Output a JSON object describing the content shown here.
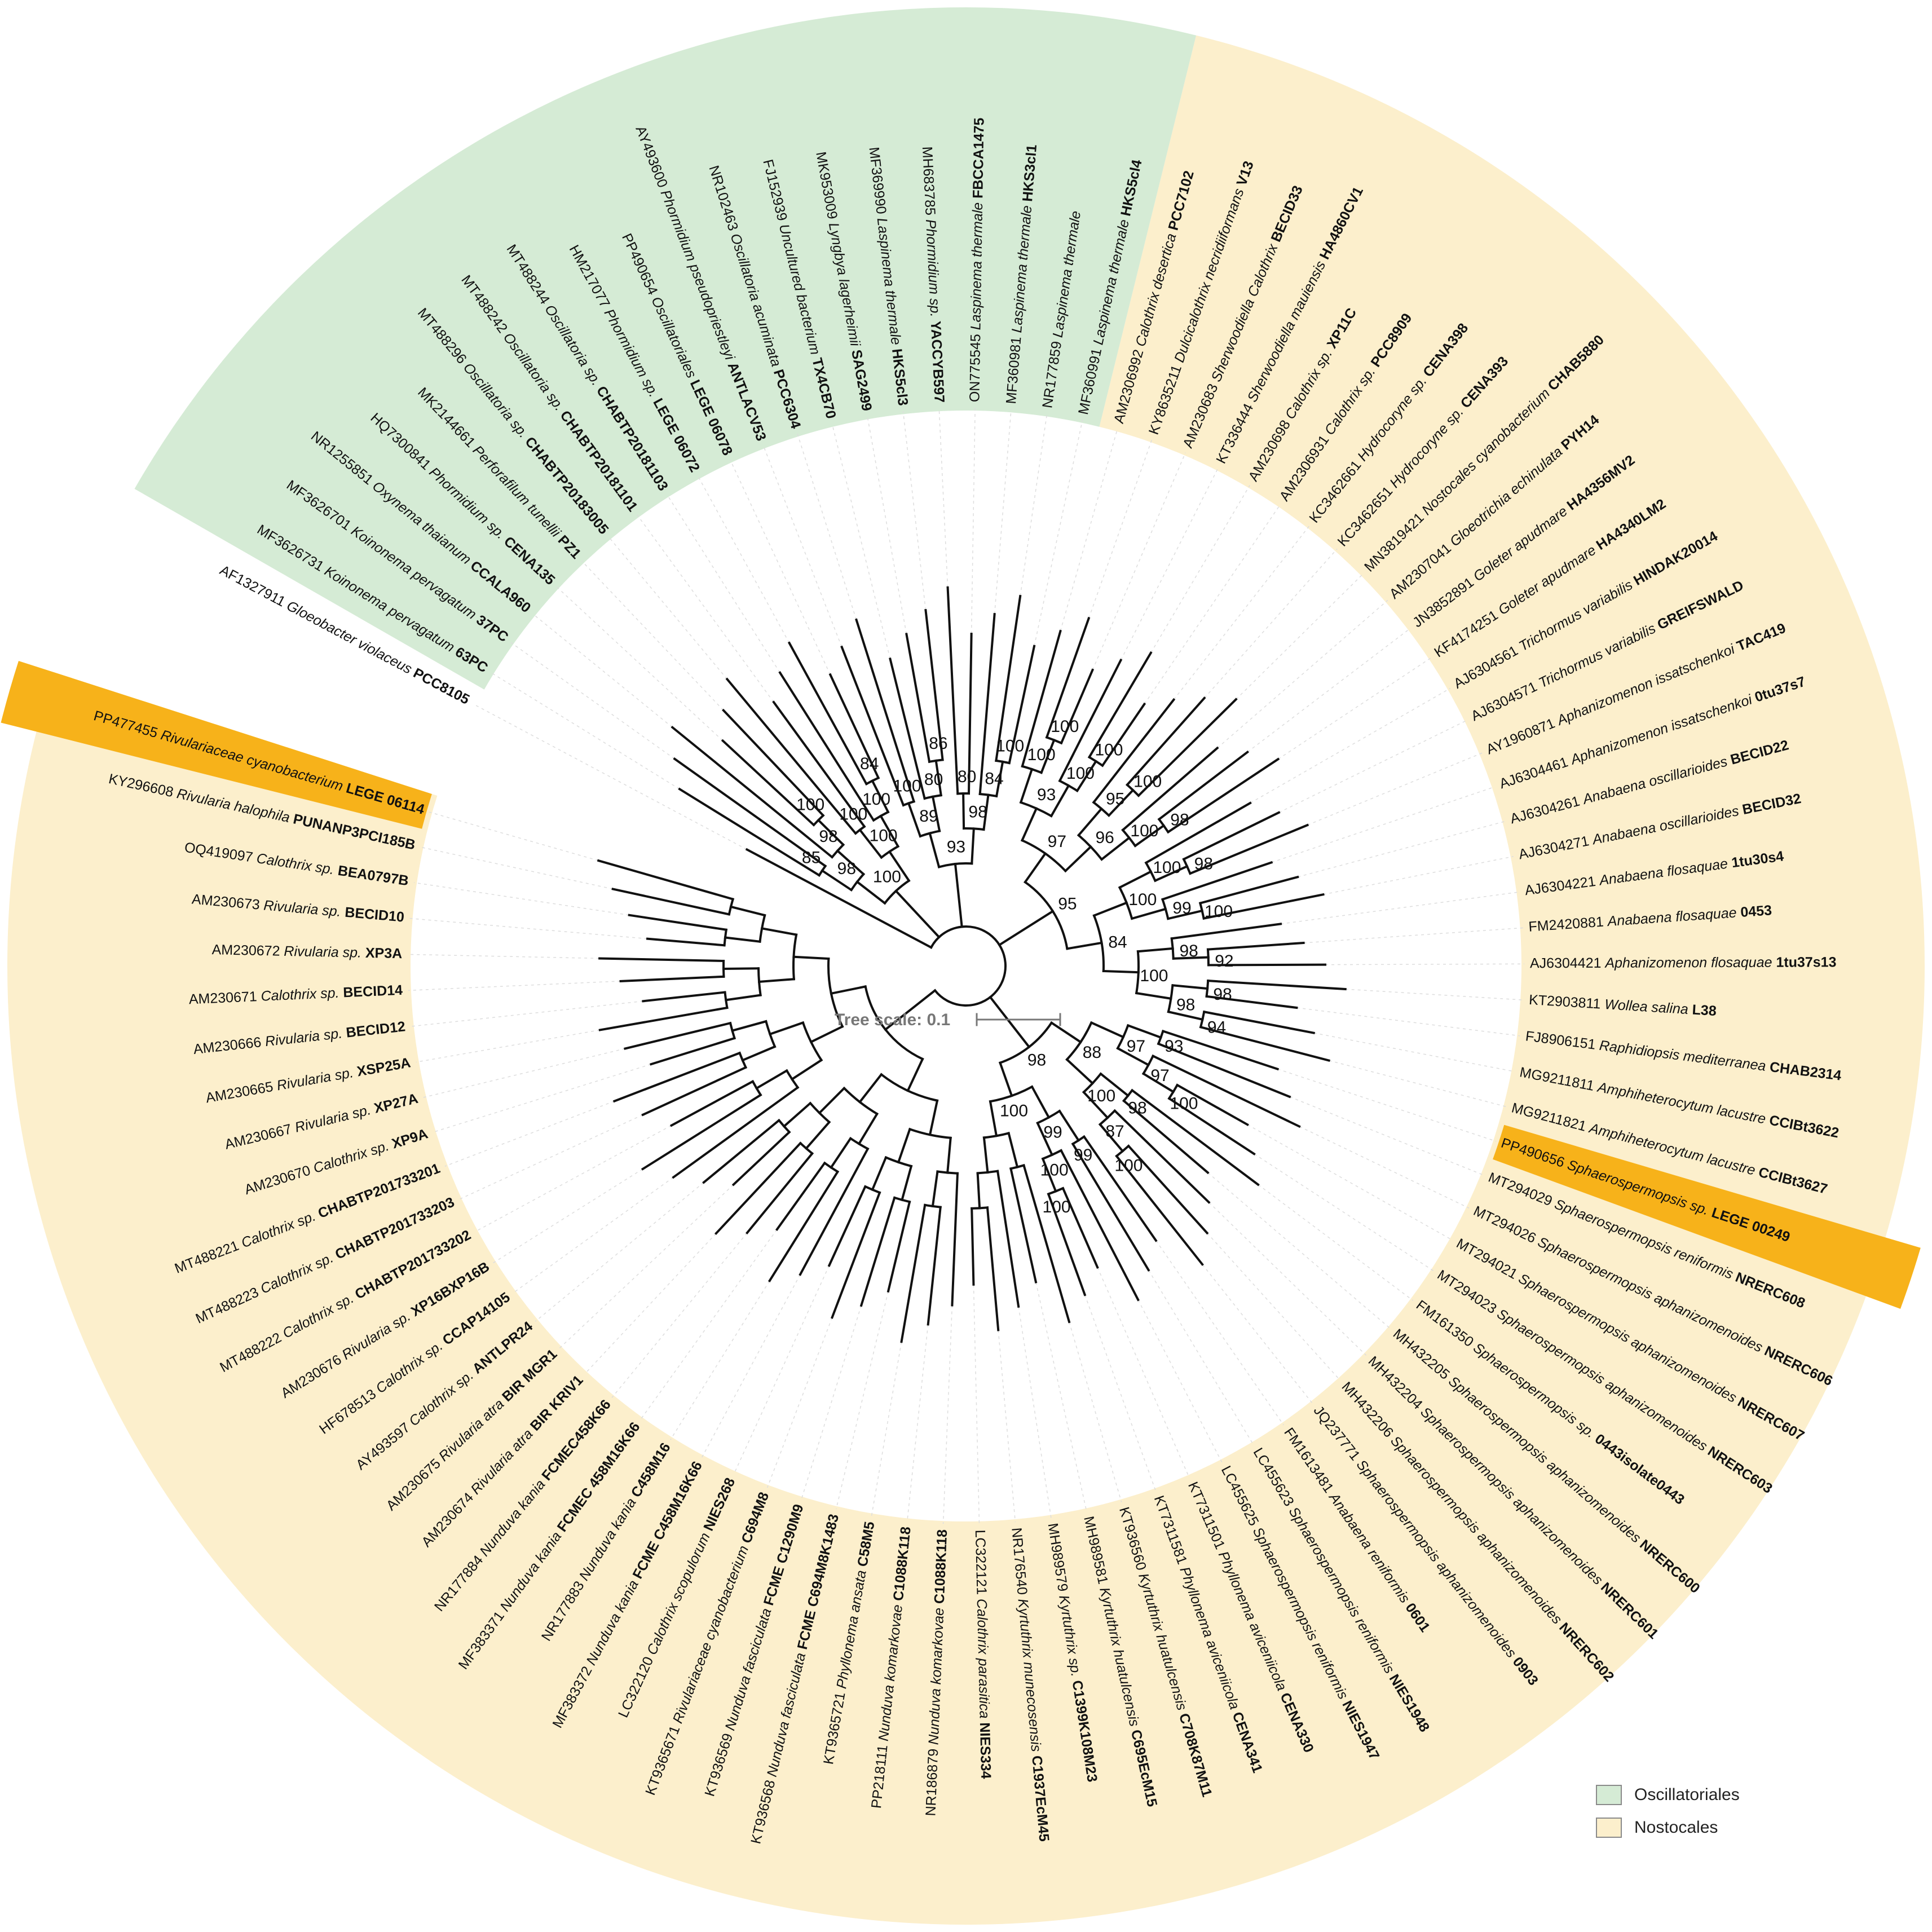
{
  "legend": [
    {
      "label": "Oscillatoriales",
      "color": "#d5ebd5"
    },
    {
      "label": "Nostocales",
      "color": "#fcefcc"
    }
  ],
  "highlight_color": "#f7b21a",
  "scale": {
    "label": "Tree scale: 0.1",
    "length": 0.1
  },
  "leaves": [
    {
      "acc": "AF1327911",
      "sp": "Gloeobacter violaceus",
      "st": "PCC8105",
      "clade": "outgroup"
    },
    {
      "acc": "MF3626731",
      "sp": "Koinonema pervagatum",
      "st": "63PC",
      "clade": "osc"
    },
    {
      "acc": "MF3626701",
      "sp": "Koinonema pervagatum",
      "st": "37PC",
      "clade": "osc"
    },
    {
      "acc": "NR1255851",
      "sp": "Oxynema thaianum",
      "st": "CCALA960",
      "clade": "osc"
    },
    {
      "acc": "HQ7300841",
      "sp": "Phormidium sp.",
      "st": "CENA135",
      "clade": "osc"
    },
    {
      "acc": "MK2144661",
      "sp": "Perforafilum tunellii",
      "st": "PZ1",
      "clade": "osc"
    },
    {
      "acc": "MT488296",
      "sp": "Oscillatoria sp.",
      "st": "CHABTP20183005",
      "clade": "osc"
    },
    {
      "acc": "MT488242",
      "sp": "Oscillatoria sp.",
      "st": "CHABTP20181101",
      "clade": "osc"
    },
    {
      "acc": "MT488244",
      "sp": "Oscillatoria sp.",
      "st": "CHABTP20181103",
      "clade": "osc"
    },
    {
      "acc": "HM217077",
      "sp": "Phormidium sp.",
      "st": "LEGE 06072",
      "clade": "osc"
    },
    {
      "acc": "PP490654",
      "sp": "Oscillatoriales",
      "st": "LEGE 06078",
      "clade": "osc"
    },
    {
      "acc": "AY493600",
      "sp": "Phormidium pseudopriestleyi",
      "st": "ANTLACV53",
      "clade": "osc"
    },
    {
      "acc": "NR102463",
      "sp": "Oscillatoria acuminata",
      "st": "PCC6304",
      "clade": "osc"
    },
    {
      "acc": "FJ152939",
      "sp": "Uncultured bacterium",
      "st": "TX4CB70",
      "clade": "osc"
    },
    {
      "acc": "MK953009",
      "sp": "Lyngbya lagerheimii",
      "st": "SAG2499",
      "clade": "osc"
    },
    {
      "acc": "MF369990",
      "sp": "Laspinema thermale",
      "st": "HKS5cl3",
      "clade": "osc"
    },
    {
      "acc": "MH683785",
      "sp": "Phormidium sp.",
      "st": "YACCYB597",
      "clade": "osc"
    },
    {
      "acc": "ON775545",
      "sp": "Laspinema thermale",
      "st": "FBCCA1475",
      "clade": "osc"
    },
    {
      "acc": "MF360981",
      "sp": "Laspinema thermale",
      "st": "HKS3cl1",
      "clade": "osc"
    },
    {
      "acc": "NR177859",
      "sp": "Laspinema thermale",
      "st": "",
      "clade": "osc"
    },
    {
      "acc": "MF360991",
      "sp": "Laspinema thermale",
      "st": "HKS5cl4",
      "clade": "osc"
    },
    {
      "acc": "AM2306992",
      "sp": "Calothrix desertica",
      "st": "PCC7102",
      "clade": "nos"
    },
    {
      "acc": "KY8635211",
      "sp": "Dulcicalothrix necridiiformans",
      "st": "V13",
      "clade": "nos"
    },
    {
      "acc": "AM230683",
      "sp": "Sherwoodiella Calothrix",
      "st": "BECID33",
      "clade": "nos"
    },
    {
      "acc": "KT336444",
      "sp": "Sherwoodiella mauiensis",
      "st": "HA4860CV1",
      "clade": "nos"
    },
    {
      "acc": "AM230698",
      "sp": "Calothrix sp.",
      "st": "XP11C",
      "clade": "nos"
    },
    {
      "acc": "AM2306931",
      "sp": "Calothrix sp.",
      "st": "PCC8909",
      "clade": "nos"
    },
    {
      "acc": "KC3462661",
      "sp": "Hydrocoryne sp.",
      "st": "CENA398",
      "clade": "nos"
    },
    {
      "acc": "KC3462651",
      "sp": "Hydrocoryne sp.",
      "st": "CENA393",
      "clade": "nos"
    },
    {
      "acc": "MN3819421",
      "sp": "Nostocales cyanobacterium",
      "st": "CHAB5880",
      "clade": "nos"
    },
    {
      "acc": "AM2307041",
      "sp": "Gloeotrichia echinulata",
      "st": "PYH14",
      "clade": "nos"
    },
    {
      "acc": "JN3852891",
      "sp": "Goleter apudmare",
      "st": "HA4356MV2",
      "clade": "nos"
    },
    {
      "acc": "KF4174251",
      "sp": "Goleter apudmare",
      "st": "HA4340LM2",
      "clade": "nos"
    },
    {
      "acc": "AJ6304561",
      "sp": "Trichormus variabilis",
      "st": "HINDAK20014",
      "clade": "nos"
    },
    {
      "acc": "AJ6304571",
      "sp": "Trichormus variabilis",
      "st": "GREIFSWALD",
      "clade": "nos"
    },
    {
      "acc": "AY1960871",
      "sp": "Aphanizomenon issatschenkoi",
      "st": "TAC419",
      "clade": "nos"
    },
    {
      "acc": "AJ6304461",
      "sp": "Aphanizomenon issatschenkoi",
      "st": "0tu37s7",
      "clade": "nos"
    },
    {
      "acc": "AJ6304261",
      "sp": "Anabaena oscillarioides",
      "st": "BECID22",
      "clade": "nos"
    },
    {
      "acc": "AJ6304271",
      "sp": "Anabaena oscillarioides",
      "st": "BECID32",
      "clade": "nos"
    },
    {
      "acc": "AJ6304221",
      "sp": "Anabaena flosaquae",
      "st": "1tu30s4",
      "clade": "nos"
    },
    {
      "acc": "FM2420881",
      "sp": "Anabaena flosaquae",
      "st": "0453",
      "clade": "nos"
    },
    {
      "acc": "AJ6304421",
      "sp": "Aphanizomenon flosaquae",
      "st": "1tu37s13",
      "clade": "nos"
    },
    {
      "acc": "KT2903811",
      "sp": "Wollea salina",
      "st": "L38",
      "clade": "nos"
    },
    {
      "acc": "FJ8906151",
      "sp": "Raphidiopsis mediterranea",
      "st": "CHAB2314",
      "clade": "nos"
    },
    {
      "acc": "MG9211811",
      "sp": "Amphiheterocytum lacustre",
      "st": "CCIBt3622",
      "clade": "nos"
    },
    {
      "acc": "MG9211821",
      "sp": "Amphiheterocytum lacustre",
      "st": "CCIBt3627",
      "clade": "nos"
    },
    {
      "acc": "PP490656",
      "sp": "Sphaerospermopsis sp.",
      "st": "LEGE 00249",
      "clade": "nos",
      "highlight": true
    },
    {
      "acc": "MT294029",
      "sp": "Sphaerospermopsis reniformis",
      "st": "NRERC608",
      "clade": "nos"
    },
    {
      "acc": "MT294026",
      "sp": "Sphaerospermopsis aphanizomenoides",
      "st": "NRERC606",
      "clade": "nos"
    },
    {
      "acc": "MT294021",
      "sp": "Sphaerospermopsis aphanizomenoides",
      "st": "NRERC607",
      "clade": "nos"
    },
    {
      "acc": "MT294023",
      "sp": "Sphaerospermopsis aphanizomenoides",
      "st": "NRERC603",
      "clade": "nos"
    },
    {
      "acc": "FM161350",
      "sp": "Sphaerospermopsis sp.",
      "st": "0443isolate0443",
      "clade": "nos"
    },
    {
      "acc": "MH432205",
      "sp": "Sphaerospermopsis aphanizomenoides",
      "st": "NRERC600",
      "clade": "nos"
    },
    {
      "acc": "MH432204",
      "sp": "Sphaerospermopsis aphanizomenoides",
      "st": "NRERC601",
      "clade": "nos"
    },
    {
      "acc": "MH432206",
      "sp": "Sphaerospermopsis aphanizomenoides",
      "st": "NRERC602",
      "clade": "nos"
    },
    {
      "acc": "JQ237771",
      "sp": "Sphaerospermopsis aphanizomenoides",
      "st": "0903",
      "clade": "nos"
    },
    {
      "acc": "FM1613481",
      "sp": "Anabaena reniformis",
      "st": "0601",
      "clade": "nos"
    },
    {
      "acc": "LC455623",
      "sp": "Sphaerospermopsis reniformis",
      "st": "NIES1948",
      "clade": "nos"
    },
    {
      "acc": "LC455625",
      "sp": "Sphaerospermopsis reniformis",
      "st": "NIES1947",
      "clade": "nos"
    },
    {
      "acc": "KT7311501",
      "sp": "Phyllonema aviceniicola",
      "st": "CENA330",
      "clade": "nos"
    },
    {
      "acc": "KT7311581",
      "sp": "Phyllonema aviceniicola",
      "st": "CENA341",
      "clade": "nos"
    },
    {
      "acc": "KT936560",
      "sp": "Kyrtuthrix huatulcensis",
      "st": "C708K87M11",
      "clade": "nos"
    },
    {
      "acc": "MH989581",
      "sp": "Kyrtuthrix huatulcensis",
      "st": "C695EcM15",
      "clade": "nos"
    },
    {
      "acc": "MH989579",
      "sp": "Kyrtuthrix sp.",
      "st": "C1399K108M23",
      "clade": "nos"
    },
    {
      "acc": "NR176540",
      "sp": "Kyrtuthrix munecosensis",
      "st": "C1937EcM45",
      "clade": "nos"
    },
    {
      "acc": "LC322121",
      "sp": "Calothrix parasitica",
      "st": "NIES334",
      "clade": "nos"
    },
    {
      "acc": "NR186879",
      "sp": "Nunduva komarkovae",
      "st": "C1088K118",
      "clade": "nos"
    },
    {
      "acc": "PP218111",
      "sp": "Nunduva komarkovae",
      "st": "C1088K118",
      "clade": "nos"
    },
    {
      "acc": "KT9365721",
      "sp": "Phyllonema ansata",
      "st": "C58M5",
      "clade": "nos"
    },
    {
      "acc": "KT936568",
      "sp": "Nunduva fasciculata",
      "st": "FCME C694M8K1483",
      "clade": "nos"
    },
    {
      "acc": "KT936569",
      "sp": "Nunduva fasciculata",
      "st": "FCME C1290M9",
      "clade": "nos"
    },
    {
      "acc": "KT9365671",
      "sp": "Rivulariaceae cyanobacterium",
      "st": "C694M8",
      "clade": "nos"
    },
    {
      "acc": "LC322120",
      "sp": "Calothrix scopulorum",
      "st": "NIES268",
      "clade": "nos"
    },
    {
      "acc": "MF383372",
      "sp": "Nunduva kania",
      "st": "FCME C458M16K66",
      "clade": "nos"
    },
    {
      "acc": "NR177883",
      "sp": "Nunduva kania",
      "st": "C458M16",
      "clade": "nos"
    },
    {
      "acc": "MF383371",
      "sp": "Nunduva kania",
      "st": "FCMEC 458M16K66",
      "clade": "nos"
    },
    {
      "acc": "NR177884",
      "sp": "Nunduva kania",
      "st": "FCMEC458K66",
      "clade": "nos"
    },
    {
      "acc": "AM230674",
      "sp": "Rivularia atra",
      "st": "BIR KRIV1",
      "clade": "nos"
    },
    {
      "acc": "AM230675",
      "sp": "Rivularia atra",
      "st": "BIR MGR1",
      "clade": "nos"
    },
    {
      "acc": "AY493597",
      "sp": "Calothrix sp.",
      "st": "ANTLPR24",
      "clade": "nos"
    },
    {
      "acc": "HF678513",
      "sp": "Calothrix sp.",
      "st": "CCAP14105",
      "clade": "nos"
    },
    {
      "acc": "AM230676",
      "sp": "Rivularia sp.",
      "st": "XP16BXP16B",
      "clade": "nos"
    },
    {
      "acc": "MT488222",
      "sp": "Calothrix sp.",
      "st": "CHABTP201733202",
      "clade": "nos"
    },
    {
      "acc": "MT488223",
      "sp": "Calothrix sp.",
      "st": "CHABTP201733203",
      "clade": "nos"
    },
    {
      "acc": "MT488221",
      "sp": "Calothrix sp.",
      "st": "CHABTP201733201",
      "clade": "nos"
    },
    {
      "acc": "AM230670",
      "sp": "Calothrix sp.",
      "st": "XP9A",
      "clade": "nos"
    },
    {
      "acc": "AM230667",
      "sp": "Rivularia sp.",
      "st": "XP27A",
      "clade": "nos"
    },
    {
      "acc": "AM230665",
      "sp": "Rivularia sp.",
      "st": "XSP25A",
      "clade": "nos"
    },
    {
      "acc": "AM230666",
      "sp": "Rivularia sp.",
      "st": "BECID12",
      "clade": "nos"
    },
    {
      "acc": "AM230671",
      "sp": "Calothrix sp.",
      "st": "BECID14",
      "clade": "nos"
    },
    {
      "acc": "AM230672",
      "sp": "Rivularia sp.",
      "st": "XP3A",
      "clade": "nos"
    },
    {
      "acc": "AM230673",
      "sp": "Rivularia sp.",
      "st": "BECID10",
      "clade": "nos"
    },
    {
      "acc": "OQ419097",
      "sp": "Calothrix sp.",
      "st": "BEA0797B",
      "clade": "nos"
    },
    {
      "acc": "KY296608",
      "sp": "Rivularia halophila",
      "st": "PUNANP3PCI185B",
      "clade": "nos"
    },
    {
      "acc": "PP477455",
      "sp": "Rivulariaceae cyanobacterium",
      "st": "LEGE 06114",
      "clade": "nos",
      "highlight": true
    }
  ],
  "bootstraps": [
    "100",
    "98",
    "85",
    "98",
    "100",
    "100",
    "100",
    "100",
    "84",
    "93",
    "89",
    "100",
    "80",
    "86",
    "98",
    "80",
    "84",
    "100",
    "95",
    "97",
    "93",
    "100",
    "100",
    "100",
    "100",
    "96",
    "95",
    "100",
    "100",
    "98",
    "84",
    "100",
    "100",
    "98",
    "99",
    "100",
    "100",
    "98",
    "92",
    "98",
    "98",
    "94",
    "98",
    "88",
    "97",
    "93",
    "97",
    "100",
    "100",
    "98",
    "87",
    "100",
    "100",
    "99",
    "99",
    "100",
    "100"
  ]
}
